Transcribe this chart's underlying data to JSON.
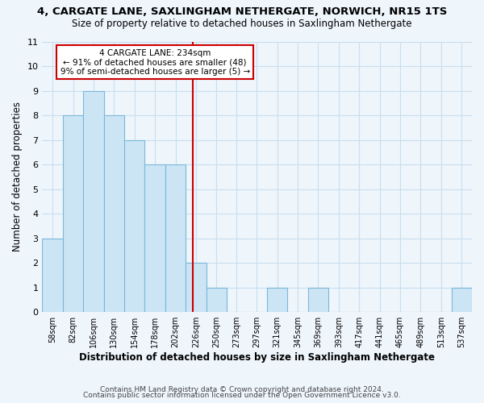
{
  "title1": "4, CARGATE LANE, SAXLINGHAM NETHERGATE, NORWICH, NR15 1TS",
  "title2": "Size of property relative to detached houses in Saxlingham Nethergate",
  "xlabel": "Distribution of detached houses by size in Saxlingham Nethergate",
  "ylabel": "Number of detached properties",
  "bin_edges": [
    58,
    82,
    106,
    130,
    154,
    178,
    202,
    226,
    250,
    273,
    297,
    321,
    345,
    369,
    393,
    417,
    441,
    465,
    489,
    513,
    537
  ],
  "bar_heights": [
    3,
    8,
    9,
    8,
    7,
    6,
    6,
    2,
    1,
    0,
    0,
    1,
    0,
    1,
    0,
    0,
    0,
    0,
    0,
    0,
    1
  ],
  "bar_color": "#cce5f5",
  "bar_edgecolor": "#7ab8d9",
  "grid_color": "#c8dff0",
  "vline_x": 234,
  "vline_color": "#cc0000",
  "annotation_title": "4 CARGATE LANE: 234sqm",
  "annotation_line1": "← 91% of detached houses are smaller (48)",
  "annotation_line2": "9% of semi-detached houses are larger (5) →",
  "annotation_box_edgecolor": "#cc0000",
  "annotation_box_facecolor": "#ffffff",
  "ylim": [
    0,
    11
  ],
  "yticks": [
    0,
    1,
    2,
    3,
    4,
    5,
    6,
    7,
    8,
    9,
    10,
    11
  ],
  "footer1": "Contains HM Land Registry data © Crown copyright and database right 2024.",
  "footer2": "Contains public sector information licensed under the Open Government Licence v3.0.",
  "bg_color": "#eef5fb"
}
